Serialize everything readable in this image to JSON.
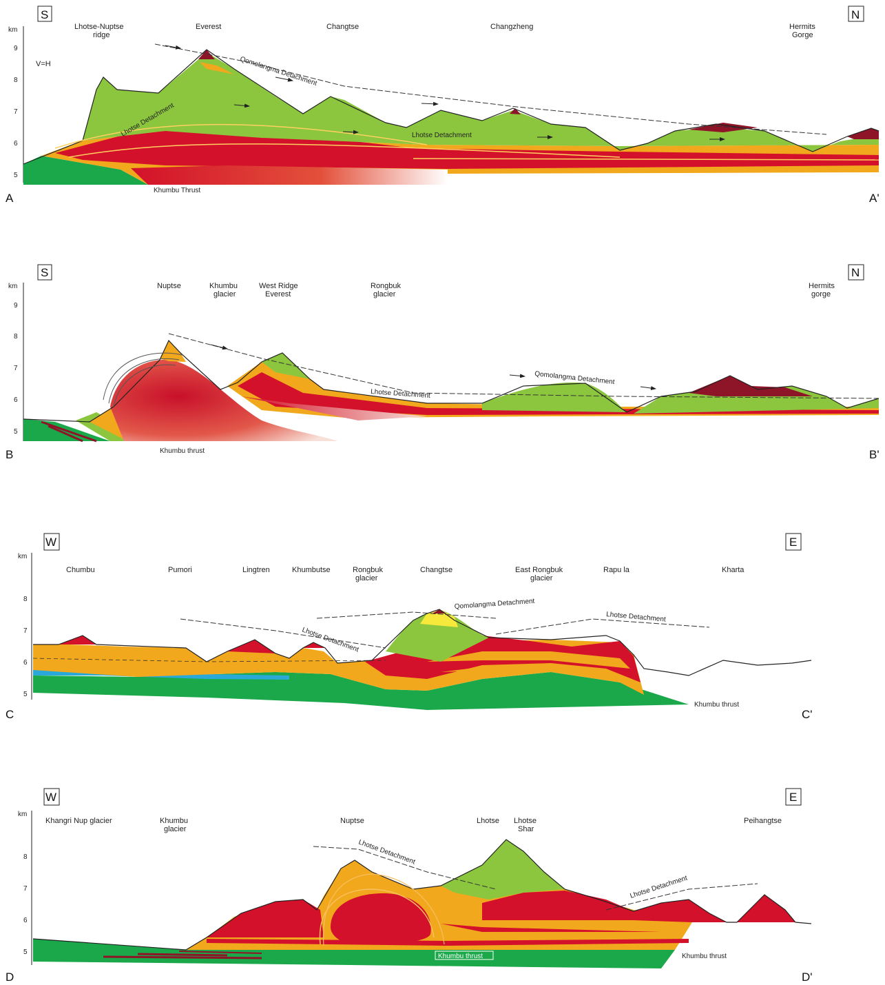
{
  "sections": [
    {
      "id": "A",
      "left_letter": "A",
      "right_letter": "A'",
      "left_dir": "S",
      "right_dir": "N",
      "unit": "km",
      "ticks": [
        "9",
        "8",
        "7",
        "6",
        "5"
      ],
      "scale_note": "V=H",
      "peaks": [
        "Lhotse-Nuptse\nridge",
        "Everest",
        "Changtse",
        "Changzheng",
        "Hermits\nGorge"
      ],
      "detachments": [
        "Qomolangma Detachment",
        "Lhotse Detachment",
        "Lhotse Detachment"
      ],
      "thrust": "Khumbu Thrust"
    },
    {
      "id": "B",
      "left_letter": "B",
      "right_letter": "B'",
      "left_dir": "S",
      "right_dir": "N",
      "unit": "km",
      "ticks": [
        "9",
        "8",
        "7",
        "6",
        "5"
      ],
      "peaks": [
        "Nuptse",
        "Khumbu\nglacier",
        "West Ridge\nEverest",
        "Rongbuk\nglacier",
        "Hermits\ngorge"
      ],
      "detachments": [
        "Lhotse Detachment",
        "Qomolangma Detachment"
      ],
      "thrust": "Khumbu thrust"
    },
    {
      "id": "C",
      "left_letter": "C",
      "right_letter": "C'",
      "left_dir": "W",
      "right_dir": "E",
      "unit": "km",
      "ticks": [
        "8",
        "7",
        "6",
        "5"
      ],
      "peaks": [
        "Chumbu",
        "Pumori",
        "Lingtren",
        "Khumbutse",
        "Rongbuk\nglacier",
        "Changtse",
        "East Rongbuk\nglacier",
        "Rapu la",
        "Kharta"
      ],
      "detachments": [
        "Qomolangma Detachment",
        "Lhotse Detachment",
        "Lhotse Detachment"
      ],
      "thrust": "Khumbu thrust"
    },
    {
      "id": "D",
      "left_letter": "D",
      "right_letter": "D'",
      "left_dir": "W",
      "right_dir": "E",
      "unit": "km",
      "ticks": [
        "8",
        "7",
        "6",
        "5"
      ],
      "peaks": [
        "Khangri Nup glacier",
        "Khumbu\nglacier",
        "Nuptse",
        "Lhotse",
        "Lhotse\nShar",
        "Peihangtse"
      ],
      "detachments": [
        "Lhotse Detachment",
        "Lhotse Detachment"
      ],
      "thrust": "Khumbu thrust",
      "thrust_inner": "Khumbu thrust"
    }
  ],
  "colors": {
    "green": "#8cc63f",
    "dark_green": "#1aa84a",
    "orange": "#f2a81d",
    "red": "#d3112a",
    "dark_red": "#8e1428",
    "yellow": "#f7e93b",
    "blue": "#2aa8d8"
  }
}
